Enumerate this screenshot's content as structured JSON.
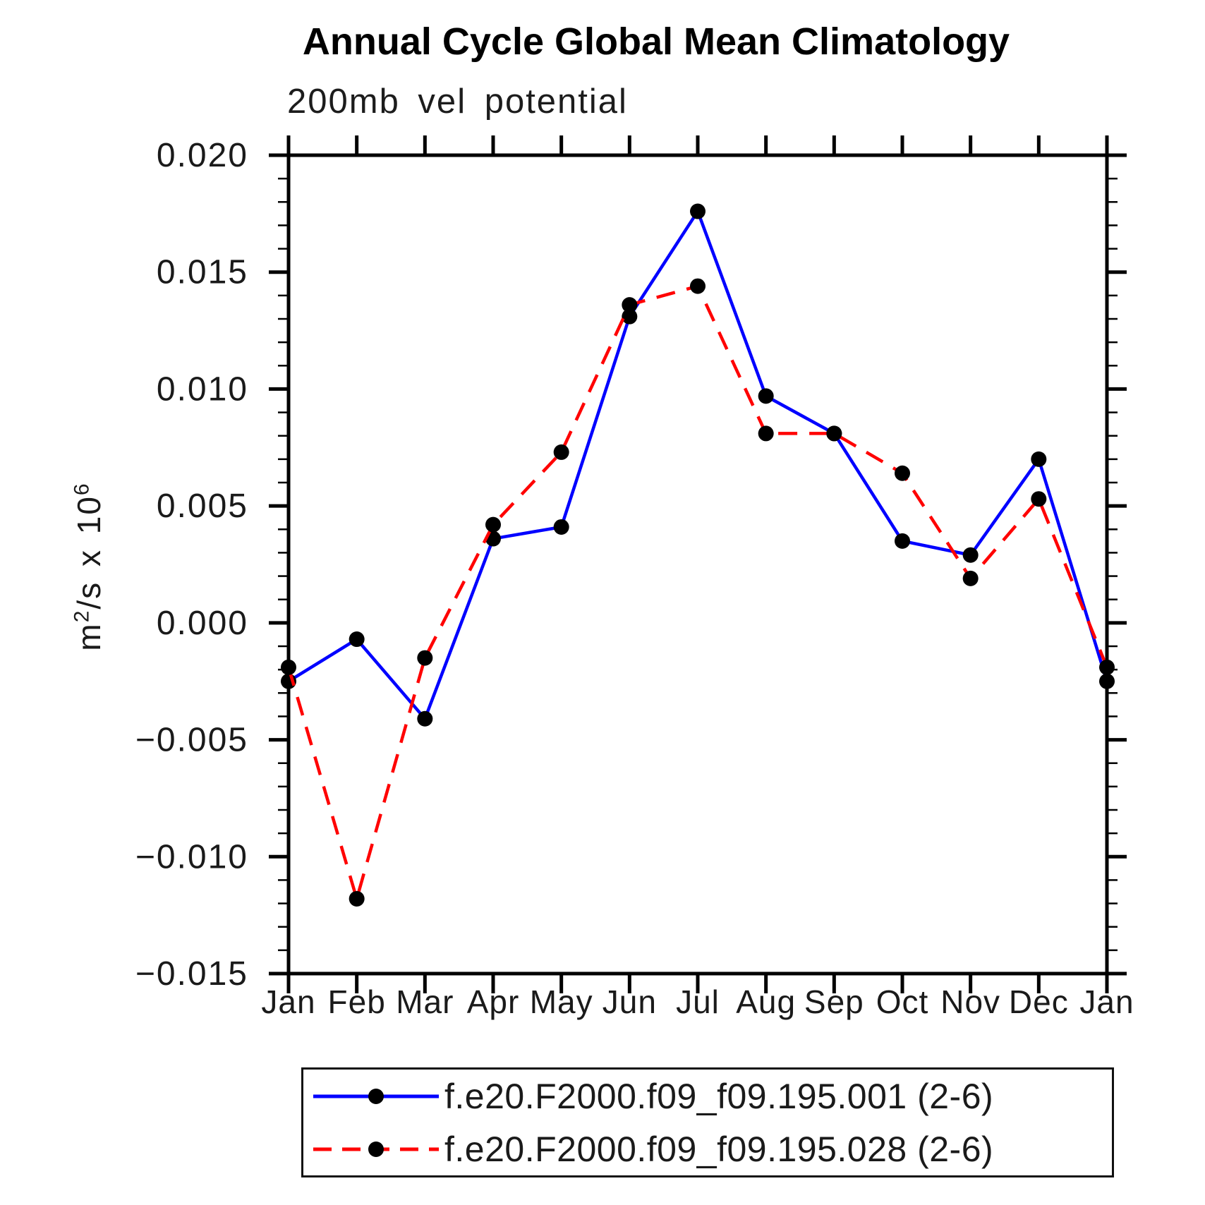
{
  "chart_data": {
    "type": "line",
    "title": "Annual Cycle Global Mean Climatology",
    "subtitle": "200mb vel potential",
    "ylabel": "m²/s x 10⁶",
    "ylabel_parts": {
      "base": "m",
      "sup1": "2",
      "mid": "/s x 10",
      "sup2": "6"
    },
    "x_categories": [
      "Jan",
      "Feb",
      "Mar",
      "Apr",
      "May",
      "Jun",
      "Jul",
      "Aug",
      "Sep",
      "Oct",
      "Nov",
      "Dec",
      "Jan"
    ],
    "series": [
      {
        "name": "f.e20.F2000.f09_f09.195.001 (2-6)",
        "color": "#0000FF",
        "line_style": "solid",
        "marker": "filled-circle",
        "values": [
          -0.0025,
          -0.0007,
          -0.0041,
          0.0036,
          0.0041,
          0.0131,
          0.0176,
          0.0097,
          0.0081,
          0.0035,
          0.0029,
          0.007,
          -0.0025
        ]
      },
      {
        "name": "f.e20.F2000.f09_f09.195.028 (2-6)",
        "color": "#FF0000",
        "line_style": "dashed",
        "marker": "filled-circle",
        "values": [
          -0.0019,
          -0.0118,
          -0.0015,
          0.0042,
          0.0073,
          0.0136,
          0.0144,
          0.0081,
          0.0081,
          0.0064,
          0.0019,
          0.0053,
          -0.0019
        ]
      }
    ],
    "ylim": [
      -0.015,
      0.02
    ],
    "y_major_ticks": [
      "0.020",
      "0.015",
      "0.010",
      "0.005",
      "0.000",
      "−0.005",
      "−0.010",
      "−0.015"
    ],
    "y_major_step": 0.005,
    "y_minor_step": 0.001,
    "grid": false,
    "legend_position": "bottom",
    "marker_color": "#000000",
    "axis_color": "#000000",
    "text_color": "#1a1a1a"
  }
}
